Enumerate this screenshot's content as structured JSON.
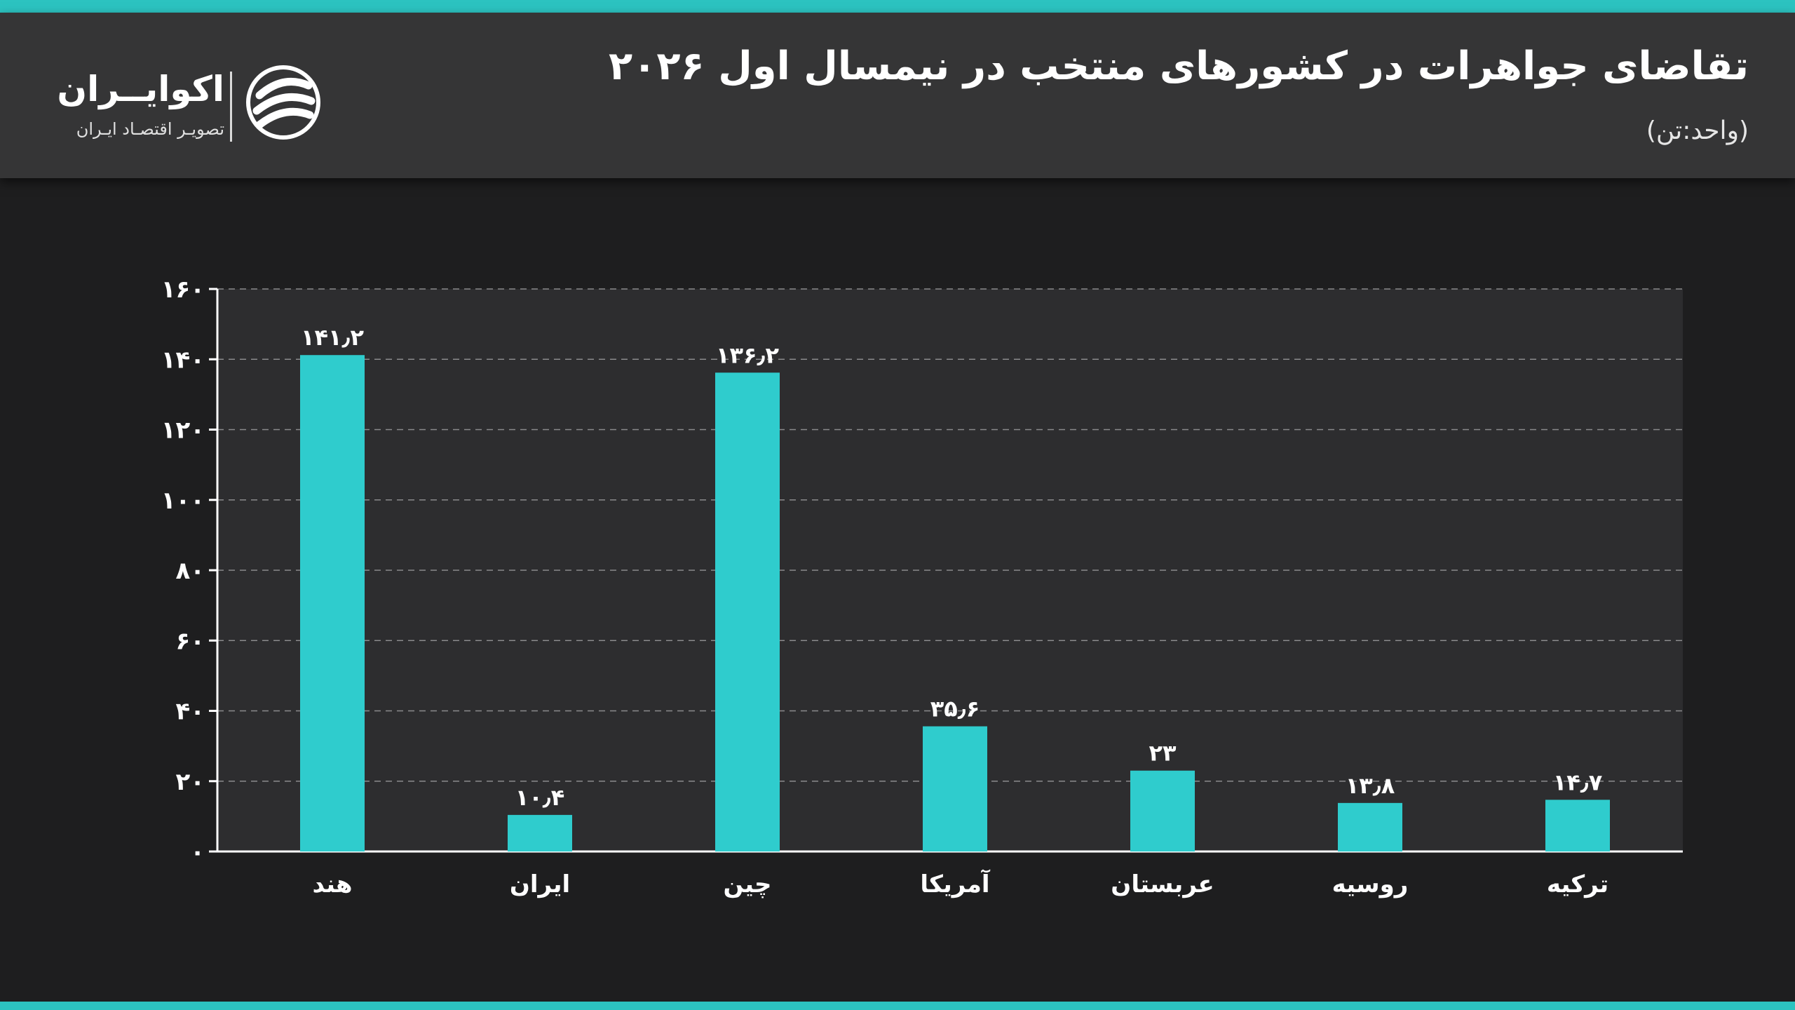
{
  "header": {
    "title": "تقاضای جواهرات در کشورهای منتخب در نیمسال اول ۲۰۲۶",
    "subtitle": "(واحد:تن)"
  },
  "brand": {
    "name": "اکوایــران",
    "tagline": "تصویـر اقتصـاد ایـران",
    "icon": "ecoiran-logo-icon"
  },
  "colors": {
    "bar": "#2fcccd",
    "accent_stripe": "#2cc3c0",
    "background": "#1e1e1f",
    "header_background": "#353536",
    "plot_background": "#2d2d2f"
  },
  "chart_data": {
    "type": "bar",
    "title": "تقاضای جواهرات در کشورهای منتخب در نیمسال اول ۲۰۲۶",
    "unit": "(واحد:تن)",
    "categories": [
      "هند",
      "ایران",
      "چین",
      "آمریکا",
      "عربستان",
      "روسیه",
      "ترکیه"
    ],
    "values": [
      141.2,
      10.4,
      136.2,
      35.6,
      23,
      13.8,
      14.7
    ],
    "value_labels": [
      "۱۴۱٫۲",
      "۱۰٫۴",
      "۱۳۶٫۲",
      "۳۵٫۶",
      "۲۳",
      "۱۳٫۸",
      "۱۴٫۷"
    ],
    "ylim": [
      0,
      160
    ],
    "yticks": [
      0,
      20,
      40,
      60,
      80,
      100,
      120,
      140,
      160
    ],
    "ytick_labels": [
      "۰",
      "۲۰",
      "۴۰",
      "۶۰",
      "۸۰",
      "۱۰۰",
      "۱۲۰",
      "۱۴۰",
      "۱۶۰"
    ],
    "grid": true,
    "legend": "none"
  }
}
